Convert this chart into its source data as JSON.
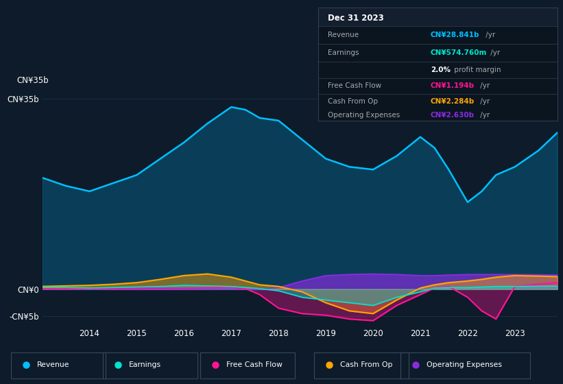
{
  "bg_color": "#0d1b2a",
  "plot_bg_color": "#0d1b2a",
  "colors": {
    "revenue": "#00bfff",
    "earnings": "#00e5cc",
    "free_cash_flow": "#ff1493",
    "cash_from_op": "#ffa500",
    "operating_expenses": "#8a2be2"
  },
  "years": [
    2013.0,
    2013.5,
    2014.0,
    2014.5,
    2015.0,
    2015.5,
    2016.0,
    2016.5,
    2017.0,
    2017.3,
    2017.6,
    2018.0,
    2018.5,
    2019.0,
    2019.5,
    2020.0,
    2020.5,
    2021.0,
    2021.3,
    2021.6,
    2022.0,
    2022.3,
    2022.6,
    2023.0,
    2023.5,
    2023.9
  ],
  "revenue": [
    20.5,
    19.0,
    18.0,
    19.5,
    21.0,
    24.0,
    27.0,
    30.5,
    33.5,
    33.0,
    31.5,
    31.0,
    27.5,
    24.0,
    22.5,
    22.0,
    24.5,
    28.0,
    26.0,
    22.0,
    16.0,
    18.0,
    21.0,
    22.5,
    25.5,
    28.8
  ],
  "earnings": [
    0.3,
    0.3,
    0.2,
    0.3,
    0.4,
    0.5,
    0.7,
    0.6,
    0.5,
    0.3,
    0.1,
    -0.3,
    -1.5,
    -2.0,
    -2.5,
    -3.0,
    -1.5,
    -0.5,
    0.2,
    0.3,
    0.3,
    0.4,
    0.5,
    0.5,
    0.55,
    0.57
  ],
  "free_cash_flow": [
    0.1,
    0.1,
    0.1,
    0.15,
    0.2,
    0.2,
    0.2,
    0.3,
    0.35,
    0.1,
    -1.0,
    -3.5,
    -4.5,
    -4.8,
    -5.5,
    -5.8,
    -3.0,
    -1.0,
    0.2,
    0.5,
    -1.5,
    -4.0,
    -5.5,
    0.5,
    0.9,
    1.2
  ],
  "cash_from_op": [
    0.5,
    0.6,
    0.7,
    0.9,
    1.2,
    1.8,
    2.5,
    2.8,
    2.2,
    1.5,
    0.8,
    0.5,
    -0.5,
    -2.5,
    -4.0,
    -4.5,
    -2.0,
    0.2,
    0.8,
    1.2,
    1.5,
    1.8,
    2.2,
    2.5,
    2.4,
    2.3
  ],
  "operating_expenses": [
    0.0,
    0.0,
    0.0,
    0.0,
    0.0,
    0.0,
    0.0,
    0.0,
    0.0,
    0.0,
    0.0,
    0.3,
    1.5,
    2.5,
    2.7,
    2.8,
    2.7,
    2.5,
    2.5,
    2.6,
    2.7,
    2.7,
    2.7,
    2.7,
    2.65,
    2.6
  ],
  "ylim": [
    -6.5,
    38.0
  ],
  "ytick_positions": [
    -5,
    0,
    35
  ],
  "ytick_labels": [
    "-CN¥5b",
    "CN¥0",
    "CN¥35b"
  ],
  "xlabel_years": [
    2014,
    2015,
    2016,
    2017,
    2018,
    2019,
    2020,
    2021,
    2022,
    2023
  ],
  "grid_lines": [
    -5,
    0,
    35
  ],
  "legend_items": [
    {
      "label": "Revenue",
      "color": "#00bfff"
    },
    {
      "label": "Earnings",
      "color": "#00e5cc"
    },
    {
      "label": "Free Cash Flow",
      "color": "#ff1493"
    },
    {
      "label": "Cash From Op",
      "color": "#ffa500"
    },
    {
      "label": "Operating Expenses",
      "color": "#8a2be2"
    }
  ],
  "info_box": {
    "title": "Dec 31 2023",
    "rows": [
      {
        "label": "Revenue",
        "value": "CN¥28.841b",
        "suffix": " /yr",
        "value_color": "#00bfff"
      },
      {
        "label": "Earnings",
        "value": "CN¥574.760m",
        "suffix": " /yr",
        "value_color": "#00e5cc"
      },
      {
        "label": "",
        "value": "2.0%",
        "suffix": " profit margin",
        "value_color": "#ffffff"
      },
      {
        "label": "Free Cash Flow",
        "value": "CN¥1.194b",
        "suffix": " /yr",
        "value_color": "#ff1493"
      },
      {
        "label": "Cash From Op",
        "value": "CN¥2.284b",
        "suffix": " /yr",
        "value_color": "#ffa500"
      },
      {
        "label": "Operating Expenses",
        "value": "CN¥2.630b",
        "suffix": " /yr",
        "value_color": "#8a2be2"
      }
    ]
  }
}
